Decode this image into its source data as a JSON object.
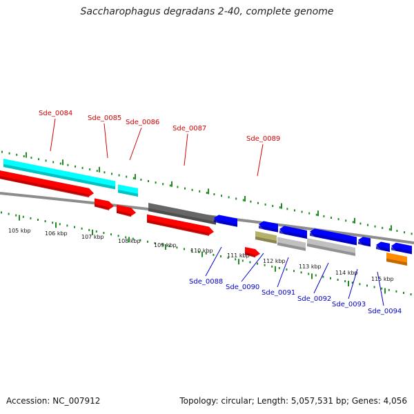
{
  "title": "Saccharophagus degradans 2-40, complete genome",
  "footer": {
    "accession": "Accession: NC_007912",
    "topology": "Topology: circular; Length: 5,057,531 bp; Genes: 4,056"
  },
  "colors": {
    "forward_label": "#d40000",
    "reverse_label": "#0000c8",
    "tick": "#1f8a1f",
    "backbone": "#8c8c8c"
  },
  "kbp_ticks": [
    "105 kbp",
    "106 kbp",
    "107 kbp",
    "108 kbp",
    "109 kbp",
    "110 kbp",
    "111 kbp",
    "112 kbp",
    "113 kbp",
    "114 kbp",
    "115 kbp"
  ],
  "labels_forward": [
    "Sde_0084",
    "Sde_0085",
    "Sde_0086",
    "Sde_0087",
    "Sde_0089"
  ],
  "labels_reverse": [
    "Sde_0088",
    "Sde_0090",
    "Sde_0091",
    "Sde_0092",
    "Sde_0093",
    "Sde_0094"
  ],
  "features": [
    {
      "track": "cds-fwd",
      "color": "#ff0000",
      "dir": 1
    },
    {
      "track": "cds-fwd",
      "color": "#ff0000",
      "dir": 1
    },
    {
      "track": "cds-fwd",
      "color": "#ff0000",
      "dir": 1
    },
    {
      "track": "cds-fwd",
      "color": "#ff0000",
      "dir": 1
    },
    {
      "track": "cds-fwd",
      "color": "#ff0000",
      "dir": 1
    },
    {
      "track": "cds-fwd",
      "color": "#ff0000",
      "dir": 1
    },
    {
      "track": "orf-fwd",
      "color": "#00ffff"
    },
    {
      "track": "orf-fwd",
      "color": "#00ffff"
    },
    {
      "track": "orf-fwd",
      "color": "#666666"
    },
    {
      "track": "cds-rev",
      "color": "#0000ff",
      "dir": -1
    },
    {
      "track": "cds-rev",
      "color": "#0000ff",
      "dir": -1
    },
    {
      "track": "cds-rev",
      "color": "#0000ff",
      "dir": -1
    },
    {
      "track": "cds-rev",
      "color": "#0000ff",
      "dir": -1
    },
    {
      "track": "cds-rev",
      "color": "#0000ff",
      "dir": -1
    },
    {
      "track": "cds-rev",
      "color": "#0000ff",
      "dir": -1
    },
    {
      "track": "cds-rev",
      "color": "#0000ff",
      "dir": -1
    },
    {
      "track": "orf-rev",
      "color": "#b5b06a"
    },
    {
      "track": "orf-rev",
      "color": "#c0c0c0"
    },
    {
      "track": "orf-rev",
      "color": "#c0c0c0"
    },
    {
      "track": "orf-rev",
      "color": "#ff8c00"
    }
  ]
}
